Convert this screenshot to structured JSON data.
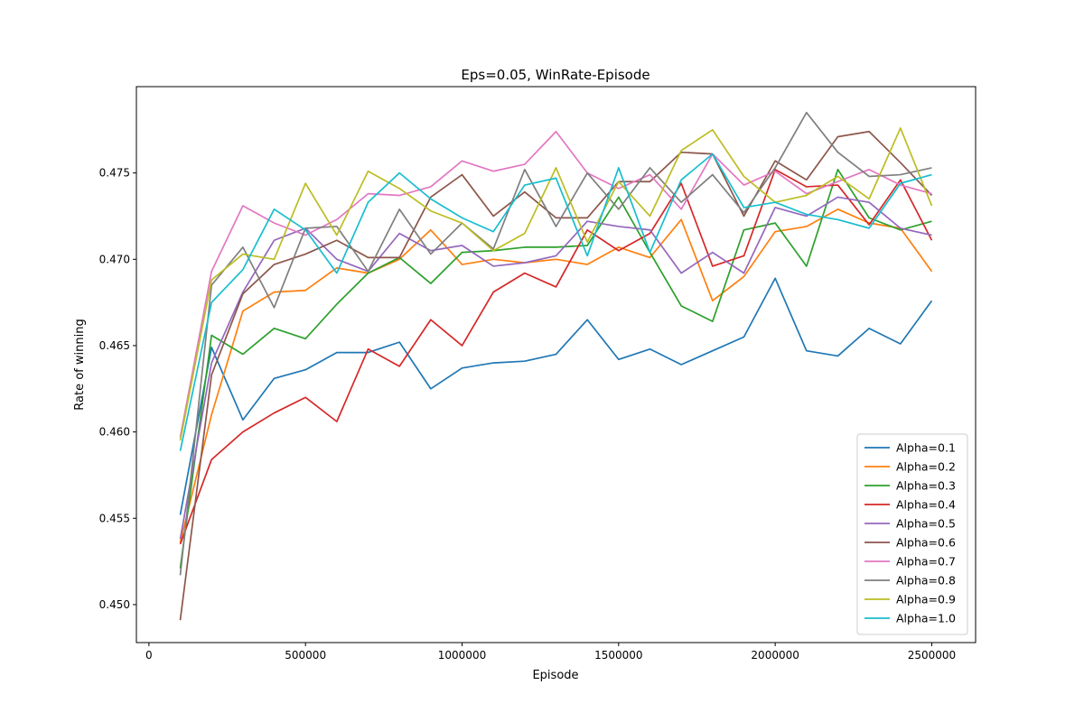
{
  "chart_data": {
    "type": "line",
    "title": "Eps=0.05, WinRate-Episode",
    "xlabel": "Episode",
    "ylabel": "Rate of winning",
    "xlim": [
      -40000,
      2640000
    ],
    "ylim": [
      0.4478,
      0.48
    ],
    "xticks": [
      0,
      500000,
      1000000,
      1500000,
      2000000,
      2500000
    ],
    "xtick_labels": [
      "0",
      "500000",
      "1000000",
      "1500000",
      "2000000",
      "2500000"
    ],
    "yticks": [
      0.45,
      0.455,
      0.46,
      0.465,
      0.47,
      0.475
    ],
    "ytick_labels": [
      "0.450",
      "0.455",
      "0.460",
      "0.465",
      "0.470",
      "0.475"
    ],
    "grid": false,
    "legend_position": "lower-right",
    "x": [
      100000,
      200000,
      300000,
      400000,
      500000,
      600000,
      700000,
      800000,
      900000,
      1000000,
      1100000,
      1200000,
      1300000,
      1400000,
      1500000,
      1600000,
      1700000,
      1800000,
      1900000,
      2000000,
      2100000,
      2200000,
      2300000,
      2400000,
      2500000
    ],
    "series": [
      {
        "name": "Alpha=0.1",
        "color": "#1f77b4",
        "values": [
          0.4552,
          0.4649,
          0.4607,
          0.4631,
          0.4636,
          0.4646,
          0.4646,
          0.4652,
          0.4625,
          0.4637,
          0.464,
          0.4641,
          0.4645,
          0.4665,
          0.4642,
          0.4648,
          0.4639,
          0.4647,
          0.4655,
          0.4689,
          0.4647,
          0.4644,
          0.466,
          0.4651,
          0.4676
        ]
      },
      {
        "name": "Alpha=0.2",
        "color": "#ff7f0e",
        "values": [
          0.4536,
          0.461,
          0.467,
          0.4681,
          0.4682,
          0.4695,
          0.4692,
          0.47,
          0.4717,
          0.4697,
          0.47,
          0.4698,
          0.47,
          0.4697,
          0.4707,
          0.4701,
          0.4723,
          0.4676,
          0.469,
          0.4716,
          0.4719,
          0.4729,
          0.4721,
          0.4718,
          0.4693
        ]
      },
      {
        "name": "Alpha=0.3",
        "color": "#2ca02c",
        "values": [
          0.4521,
          0.4656,
          0.4645,
          0.466,
          0.4654,
          0.4674,
          0.4692,
          0.4701,
          0.4686,
          0.4704,
          0.4705,
          0.4707,
          0.4707,
          0.4708,
          0.4736,
          0.4704,
          0.4673,
          0.4664,
          0.4717,
          0.4721,
          0.4696,
          0.4752,
          0.4724,
          0.4717,
          0.4722
        ]
      },
      {
        "name": "Alpha=0.4",
        "color": "#d62728",
        "values": [
          0.4535,
          0.4584,
          0.46,
          0.4611,
          0.462,
          0.4606,
          0.4648,
          0.4638,
          0.4665,
          0.465,
          0.4681,
          0.4692,
          0.4684,
          0.4717,
          0.4705,
          0.4715,
          0.4744,
          0.4696,
          0.4702,
          0.4752,
          0.4742,
          0.4743,
          0.472,
          0.4746,
          0.4711
        ]
      },
      {
        "name": "Alpha=0.5",
        "color": "#9467bd",
        "values": [
          0.4538,
          0.464,
          0.4681,
          0.4711,
          0.4718,
          0.47,
          0.4693,
          0.4715,
          0.4705,
          0.4708,
          0.4696,
          0.4698,
          0.4702,
          0.4722,
          0.4719,
          0.4717,
          0.4692,
          0.4704,
          0.4692,
          0.473,
          0.4725,
          0.4736,
          0.4733,
          0.4718,
          0.4714
        ]
      },
      {
        "name": "Alpha=0.6",
        "color": "#8c564b",
        "values": [
          0.4491,
          0.4633,
          0.468,
          0.4697,
          0.4703,
          0.4711,
          0.4701,
          0.4701,
          0.4736,
          0.4749,
          0.4725,
          0.4739,
          0.4724,
          0.4724,
          0.4745,
          0.4745,
          0.4762,
          0.4761,
          0.4725,
          0.4757,
          0.4746,
          0.4771,
          0.4774,
          0.4756,
          0.4737
        ]
      },
      {
        "name": "Alpha=0.7",
        "color": "#e377c2",
        "values": [
          0.4597,
          0.4693,
          0.4731,
          0.4721,
          0.4714,
          0.4723,
          0.4738,
          0.4737,
          0.4742,
          0.4757,
          0.4751,
          0.4755,
          0.4774,
          0.475,
          0.4741,
          0.4749,
          0.4729,
          0.4761,
          0.4743,
          0.4751,
          0.4738,
          0.4745,
          0.4752,
          0.4743,
          0.4738
        ]
      },
      {
        "name": "Alpha=0.8",
        "color": "#7f7f7f",
        "values": [
          0.4517,
          0.4685,
          0.4707,
          0.4672,
          0.4718,
          0.4719,
          0.4693,
          0.4729,
          0.4703,
          0.4721,
          0.4706,
          0.4752,
          0.4719,
          0.475,
          0.4729,
          0.4753,
          0.4733,
          0.4749,
          0.4727,
          0.4753,
          0.4785,
          0.4762,
          0.4748,
          0.4749,
          0.4753
        ]
      },
      {
        "name": "Alpha=0.9",
        "color": "#bcbd22",
        "values": [
          0.4595,
          0.4688,
          0.4703,
          0.47,
          0.4744,
          0.4714,
          0.4751,
          0.4741,
          0.4728,
          0.4721,
          0.4705,
          0.4715,
          0.4753,
          0.471,
          0.4745,
          0.4725,
          0.4763,
          0.4775,
          0.4748,
          0.4733,
          0.4737,
          0.4748,
          0.4735,
          0.4776,
          0.4731
        ]
      },
      {
        "name": "Alpha=1.0",
        "color": "#17becf",
        "values": [
          0.4589,
          0.4675,
          0.4694,
          0.4729,
          0.4717,
          0.4692,
          0.4733,
          0.475,
          0.4735,
          0.4724,
          0.4716,
          0.4743,
          0.4747,
          0.4702,
          0.4753,
          0.4704,
          0.4746,
          0.4761,
          0.473,
          0.4733,
          0.4726,
          0.4723,
          0.4718,
          0.4744,
          0.4749
        ]
      }
    ]
  }
}
